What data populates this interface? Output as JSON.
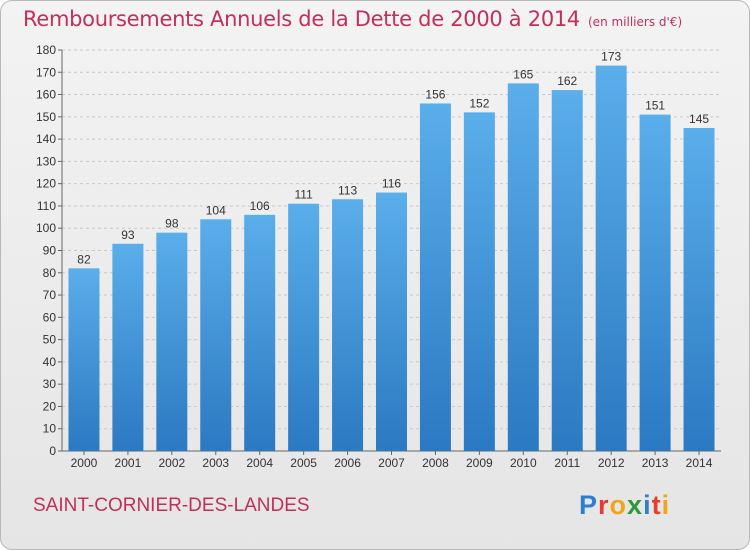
{
  "chart_data": {
    "type": "bar",
    "title": "Remboursements Annuels de la Dette de 2000 à 2014",
    "unit_note": "(en milliers d'€)",
    "categories": [
      "2000",
      "2001",
      "2002",
      "2003",
      "2004",
      "2005",
      "2006",
      "2007",
      "2008",
      "2009",
      "2010",
      "2011",
      "2012",
      "2013",
      "2014"
    ],
    "values": [
      82,
      93,
      98,
      104,
      106,
      111,
      113,
      116,
      156,
      152,
      165,
      162,
      173,
      151,
      145
    ],
    "xlabel": "",
    "ylabel": "",
    "ylim": [
      0,
      180
    ],
    "yticks": [
      0,
      10,
      20,
      30,
      40,
      50,
      60,
      70,
      80,
      90,
      100,
      110,
      120,
      130,
      140,
      150,
      160,
      170,
      180
    ],
    "grid": true,
    "bar_color": "#3b8fd6"
  },
  "footer": {
    "commune": "SAINT-CORNIER-DES-LANDES",
    "logo": [
      "P",
      "r",
      "o",
      "x",
      "i",
      "t",
      "i"
    ],
    "logo_colors": [
      "#2b7fd0",
      "#e63b2e",
      "#f2a516",
      "#2b9a3a",
      "#2b7fd0",
      "#e63b2e",
      "#f2a516"
    ]
  }
}
